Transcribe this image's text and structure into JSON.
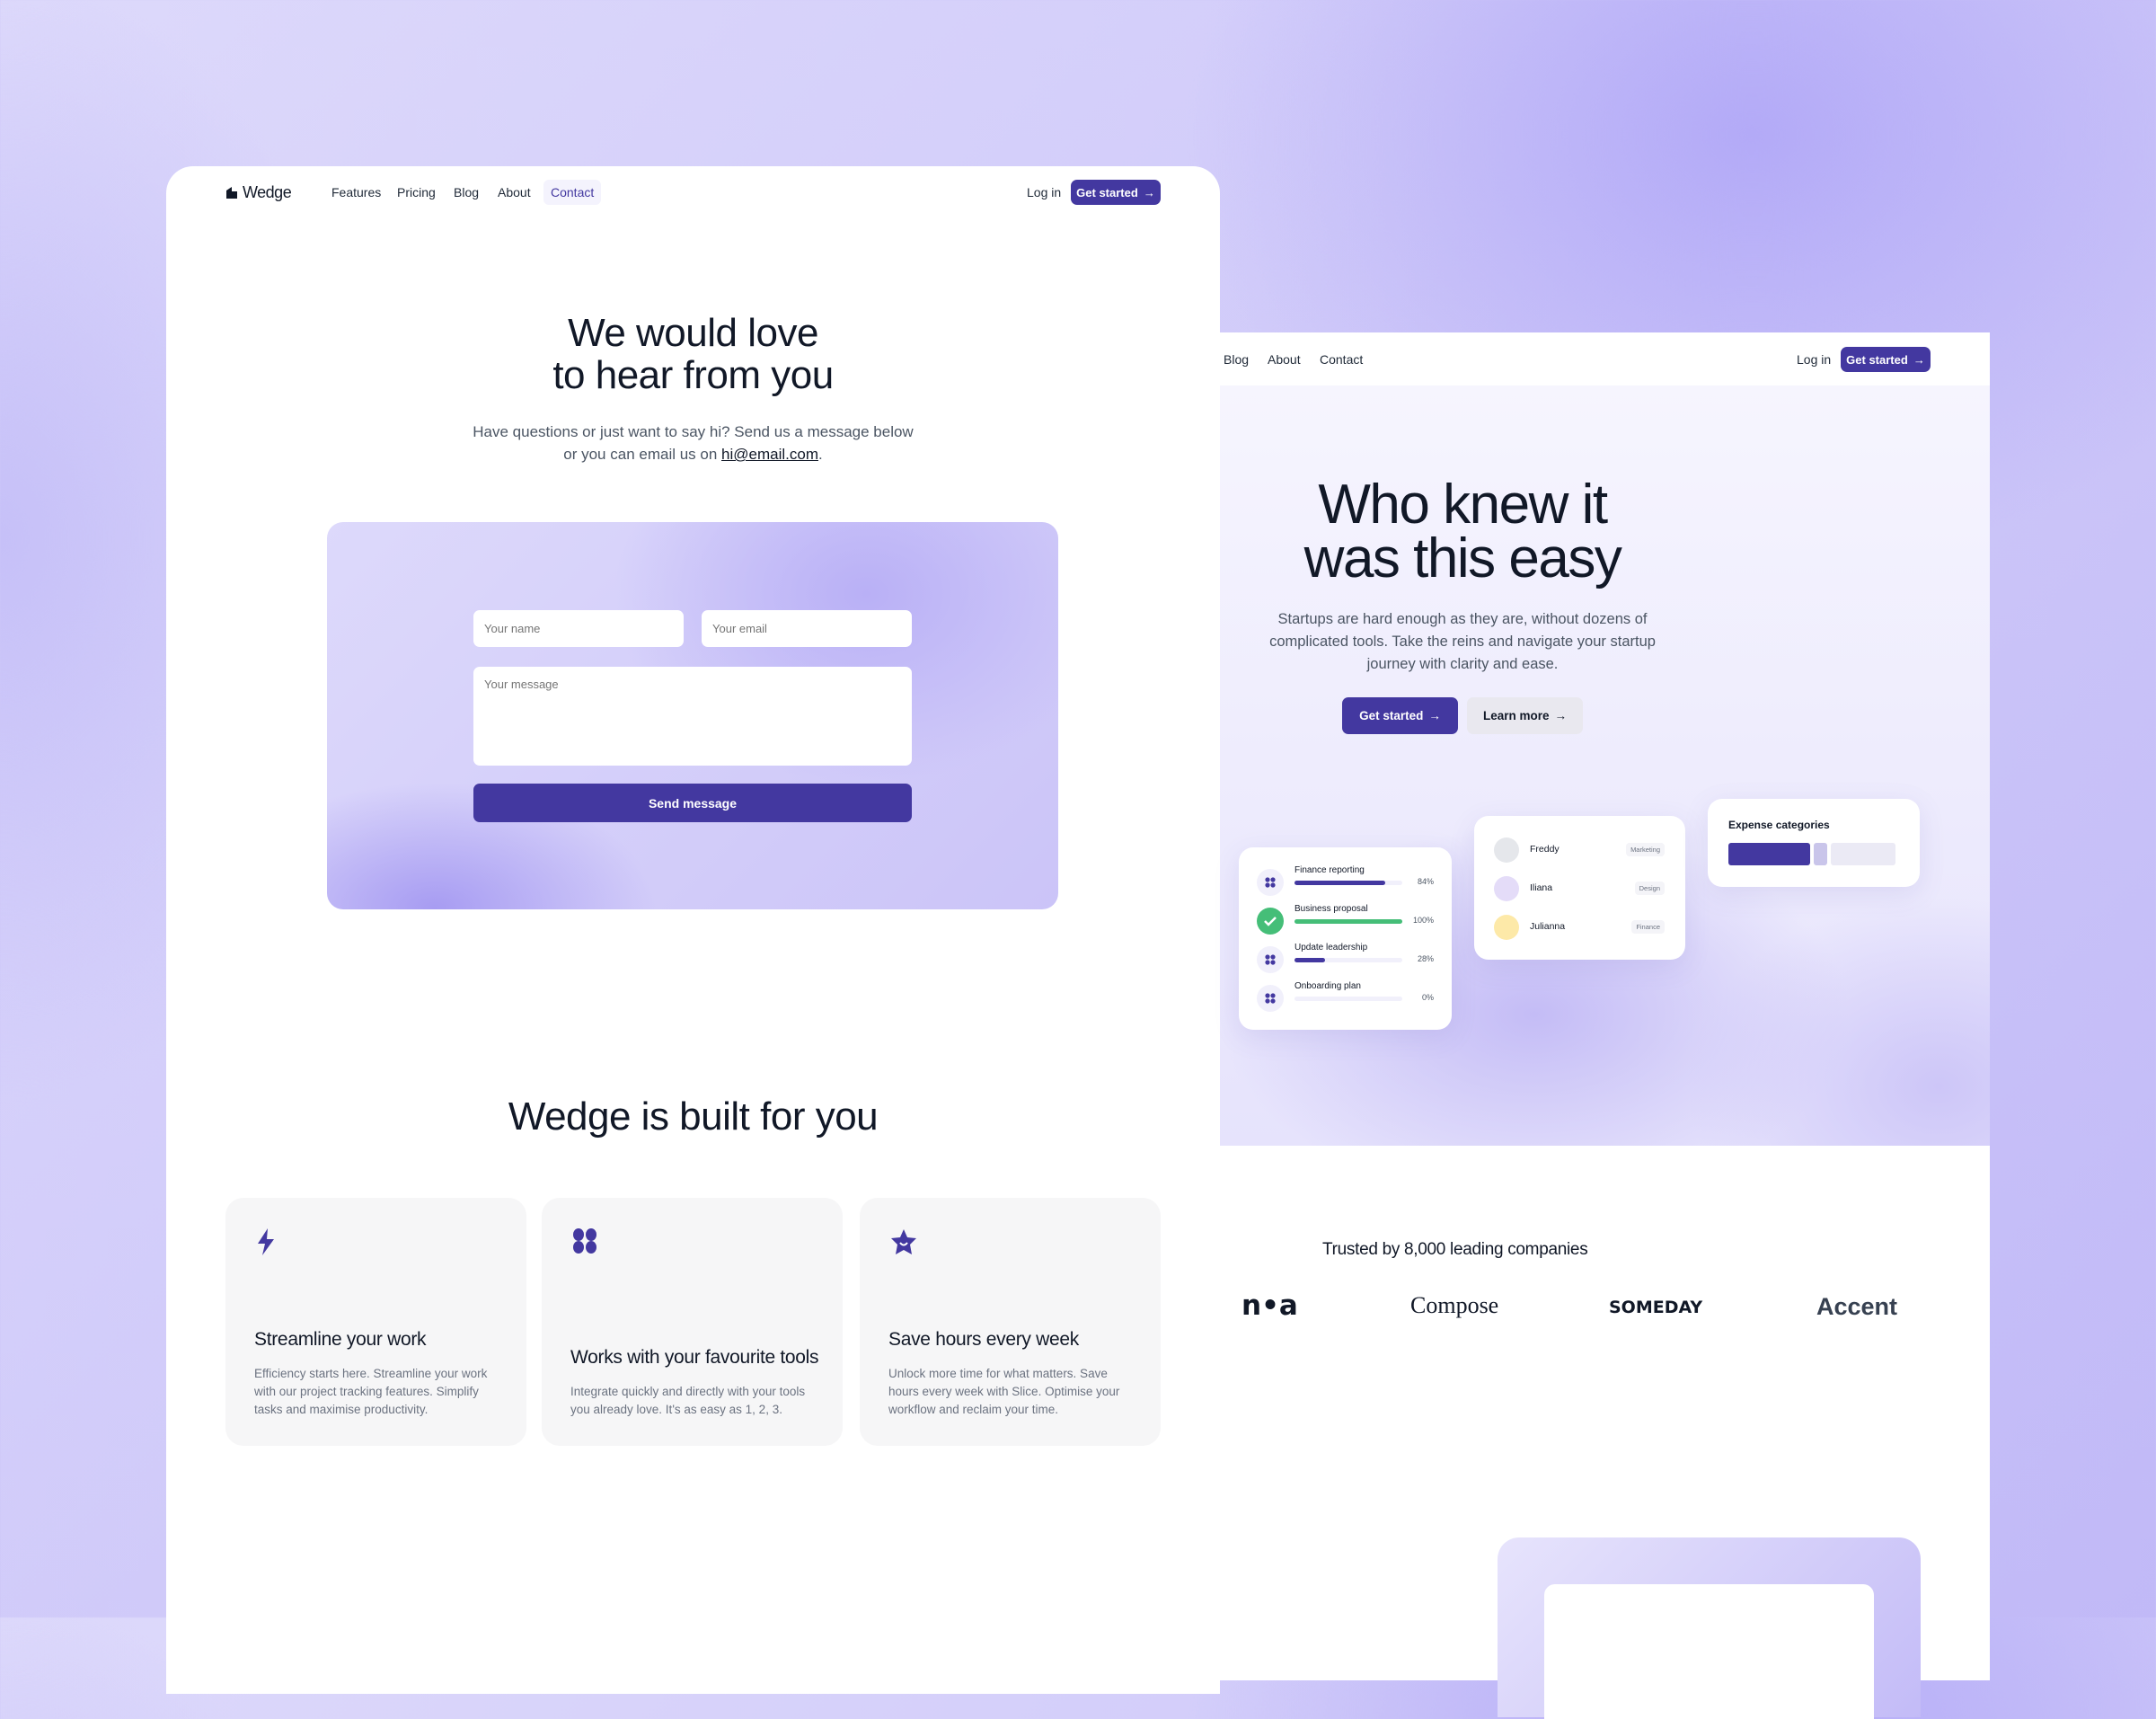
{
  "contact_page": {
    "nav": {
      "brand": "Wedge",
      "links": [
        "Features",
        "Pricing",
        "Blog",
        "About",
        "Contact"
      ],
      "active": "Contact",
      "login": "Log in",
      "cta": "Get started",
      "cta_icon": "arrow-right-icon"
    },
    "hero": {
      "title_line1": "We would love",
      "title_line2": "to hear from you",
      "subtitle_line1": "Have questions or just want to say hi? Send us a message below",
      "subtitle_line2_prefix": "or you can email us on ",
      "email": "hi@email.com",
      "subtitle_line2_suffix": "."
    },
    "form": {
      "name_placeholder": "Your name",
      "email_placeholder": "Your email",
      "message_placeholder": "Your message",
      "submit": "Send message"
    },
    "features": {
      "title": "Wedge is built for you",
      "cards": [
        {
          "icon": "lightning-icon",
          "title": "Streamline your work",
          "text": "Efficiency starts here. Streamline your work with our project tracking features. Simplify tasks and maximise productivity."
        },
        {
          "icon": "clover-icon",
          "title": "Works with your favourite tools",
          "text": "Integrate quickly and directly with your tools you already love. It's as easy as 1, 2, 3."
        },
        {
          "icon": "star-icon",
          "title": "Save hours every week",
          "text": "Unlock more time for what matters. Save hours every week with Slice. Optimise your workflow and reclaim your time."
        }
      ]
    }
  },
  "home_page": {
    "nav": {
      "links": [
        "Blog",
        "About",
        "Contact"
      ],
      "login": "Log in",
      "cta": "Get started"
    },
    "hero": {
      "title_line1": "Who knew it",
      "title_line2": "was this easy",
      "text_line1": "Startups are hard enough as they are, without dozens of",
      "text_line2": "complicated tools. Take the reins and navigate your startup",
      "text_line3": "journey with clarity and ease.",
      "primary": "Get started",
      "secondary": "Learn more"
    },
    "tasks": [
      {
        "name": "Finance reporting",
        "progress": 84,
        "label": "84%",
        "done": false
      },
      {
        "name": "Business proposal",
        "progress": 100,
        "label": "100%",
        "done": true
      },
      {
        "name": "Update leadership",
        "progress": 28,
        "label": "28%",
        "done": false
      },
      {
        "name": "Onboarding plan",
        "progress": 0,
        "label": "0%",
        "done": false
      }
    ],
    "people": [
      {
        "name": "Freddy",
        "tag": "Marketing",
        "color": "#e5e7eb"
      },
      {
        "name": "Iliana",
        "tag": "Design",
        "color": "#e4dcf8"
      },
      {
        "name": "Julianna",
        "tag": "Finance",
        "color": "#fde9a8"
      }
    ],
    "expenses": {
      "title": "Expense categories",
      "segments": [
        {
          "share": 0.5,
          "color": "#4338a0"
        },
        {
          "share": 0.08,
          "color": "#c9c5ea"
        },
        {
          "share": 0.4,
          "color": "#ebeaf5"
        }
      ]
    },
    "trusted": {
      "title": "Trusted by 8,000 leading companies",
      "logos": [
        "n•a",
        "Compose",
        "SOMEDAY",
        "Accent"
      ]
    }
  },
  "colors": {
    "accent": "#4338a0",
    "success": "#45be78"
  }
}
